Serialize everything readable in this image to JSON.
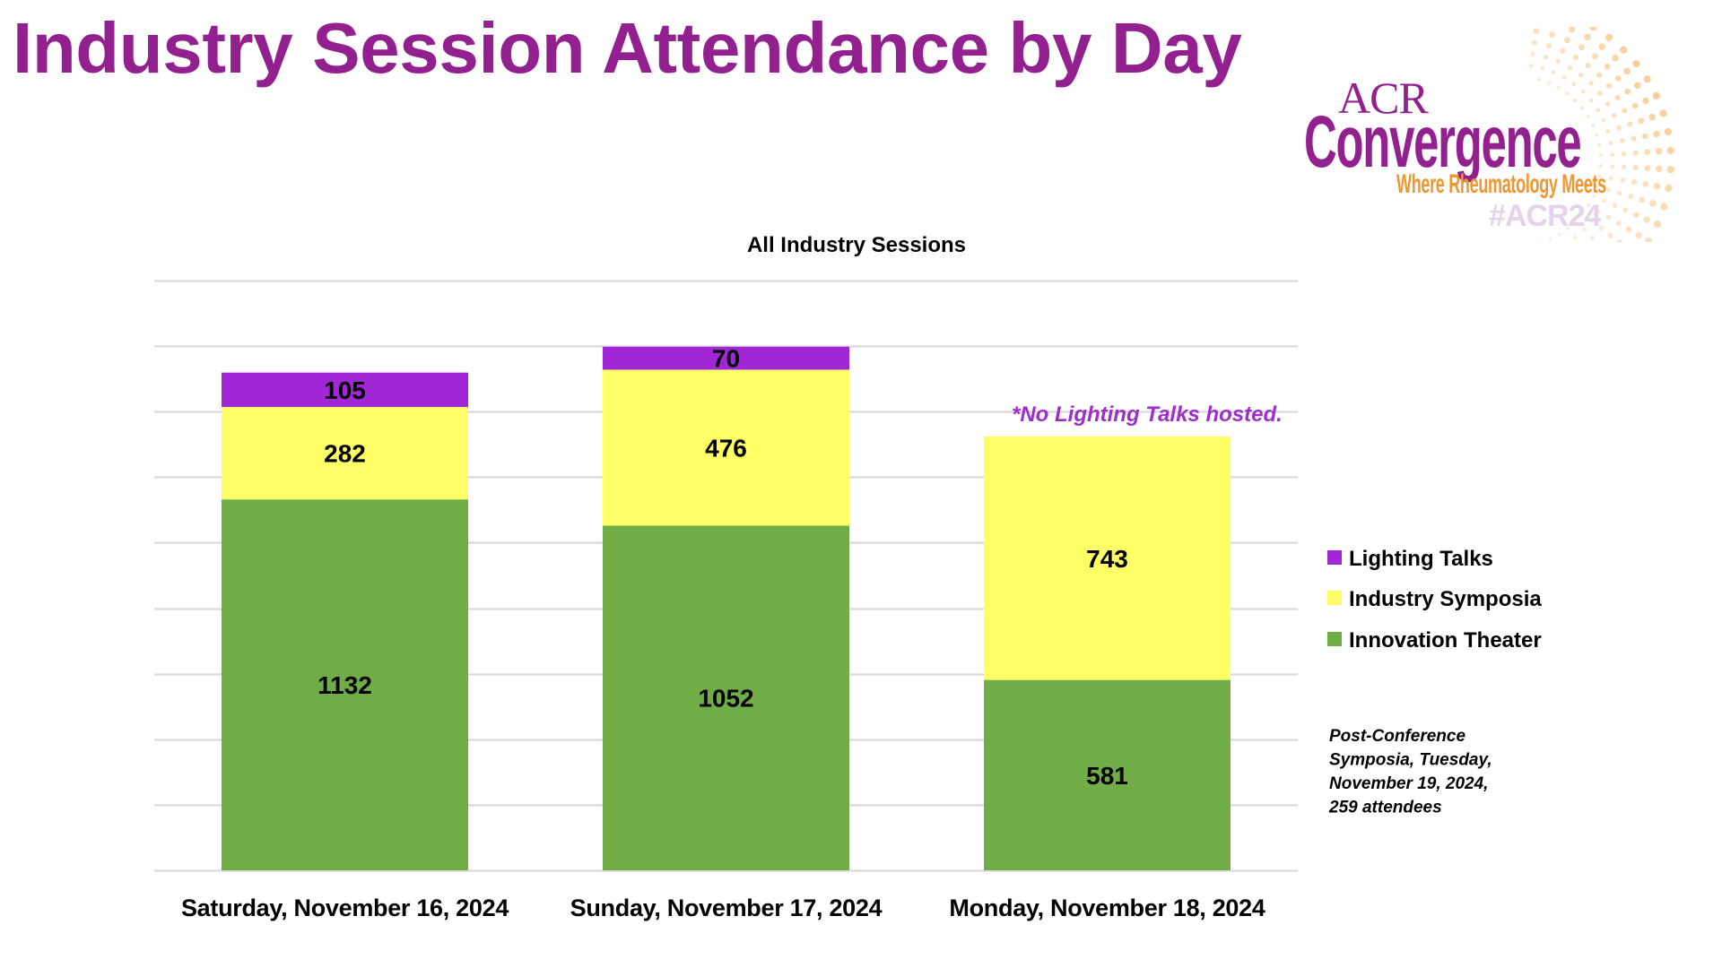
{
  "page": {
    "title": "Industry Session Attendance by Day"
  },
  "logo": {
    "acr": "ACR",
    "name": "Convergence",
    "tagline": "Where Rheumatology Meets",
    "hashtag": "#ACR24",
    "colors": {
      "primary": "#93208F",
      "tagline": "#F0962E",
      "hashtag": "#E4D3EA",
      "dots": "#F7C98E"
    }
  },
  "chart_data": {
    "type": "bar",
    "stacked": true,
    "title": "All Industry Sessions",
    "xlabel": "",
    "ylabel": "",
    "ylim": [
      0,
      1800
    ],
    "ytick_step": 200,
    "y_tick_labels_visible": false,
    "grid": true,
    "legend_position": "right",
    "categories": [
      "Saturday, November 16, 2024",
      "Sunday, November 17, 2024",
      "Monday, November 18, 2024"
    ],
    "series": [
      {
        "name": "Innovation Theater",
        "color": "#70AD47",
        "values": [
          1132,
          1052,
          581
        ]
      },
      {
        "name": "Industry Symposia",
        "color": "#FFFF66",
        "values": [
          282,
          476,
          743
        ]
      },
      {
        "name": "Lighting Talks",
        "color": "#A126D6",
        "values": [
          105,
          70,
          0
        ]
      }
    ],
    "legend_order": [
      "Lighting Talks",
      "Industry Symposia",
      "Innovation Theater"
    ],
    "annotations": [
      {
        "text": "*No Lighting Talks hosted.",
        "category": "Monday, November 18, 2024",
        "color": "#9B2FCC"
      }
    ],
    "note_lines": [
      "Post-Conference",
      "Symposia, Tuesday,",
      "November 19, 2024,",
      "259 attendees"
    ]
  }
}
